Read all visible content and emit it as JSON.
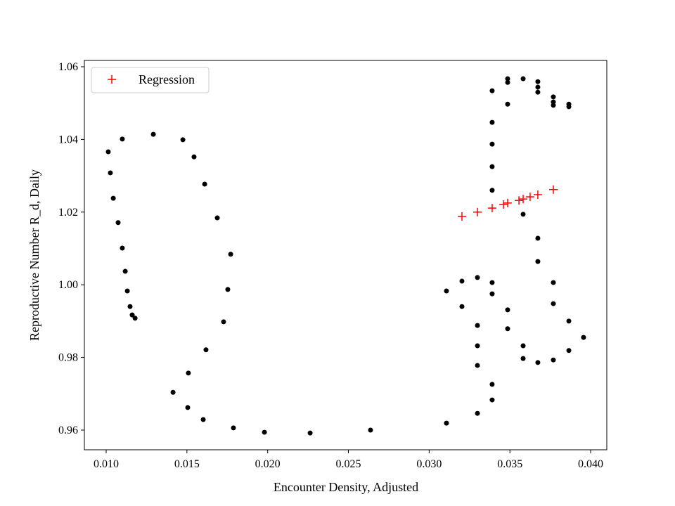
{
  "chart_data": {
    "type": "scatter",
    "x_label": "Encounter Density, Adjusted",
    "y_label": "Reproductive Number R_d, Daily",
    "xlim": [
      0.00865,
      0.041
    ],
    "ylim": [
      0.95458,
      1.06174
    ],
    "xticks": [
      {
        "value": 0.01,
        "label": "0.010"
      },
      0.015,
      {
        "value": 0.02,
        "label": "0.020"
      },
      0.025,
      {
        "value": 0.03,
        "label": "0.030"
      },
      0.035,
      {
        "value": 0.04,
        "label": "0.040"
      }
    ],
    "yticks": [
      0.96,
      0.98,
      {
        "value": 1.0,
        "label": "1.00"
      },
      1.02,
      1.04,
      1.06
    ],
    "legend": "upper left",
    "series": [
      {
        "color": "#000000",
        "marker": "o",
        "x": [
          0.01013,
          0.01026,
          0.01044,
          0.01074,
          0.011,
          0.01118,
          0.01131,
          0.01148,
          0.01161,
          0.01179,
          0.011,
          0.01292,
          0.01475,
          0.01544,
          0.0161,
          0.01688,
          0.01771,
          0.01753,
          0.01727,
          0.01618,
          0.01509,
          0.01414,
          0.01505,
          0.01601,
          0.01788,
          0.0198,
          0.02263,
          0.02637,
          0.03107,
          0.03299,
          0.0339,
          0.0339,
          0.03299,
          0.03299,
          0.03299,
          0.03486,
          0.03486,
          0.0339,
          0.0339,
          0.03299,
          0.03203,
          0.03107,
          0.03203,
          0.03582,
          0.03582,
          0.03673,
          0.03769,
          0.03865,
          0.03956,
          0.03865,
          0.03769,
          0.03769,
          0.03673,
          0.03673,
          0.03582,
          0.0339,
          0.0339,
          0.0339,
          0.0339,
          0.0339,
          0.03486,
          0.03486,
          0.03486,
          0.03582,
          0.03673,
          0.03673,
          0.03673,
          0.03769,
          0.03769,
          0.03769,
          0.03865,
          0.03865
        ],
        "values": [
          1.0366,
          1.0308,
          1.0238,
          1.0171,
          1.0101,
          1.0037,
          0.9983,
          0.994,
          0.9917,
          0.9908,
          1.0401,
          1.0414,
          1.0399,
          1.0352,
          1.0277,
          1.0184,
          1.0084,
          0.9987,
          0.9898,
          0.9821,
          0.9757,
          0.9704,
          0.9662,
          0.9629,
          0.9606,
          0.9594,
          0.9592,
          0.96,
          0.9619,
          0.9646,
          0.9683,
          0.9726,
          0.9778,
          0.9832,
          0.9888,
          0.9879,
          0.9931,
          0.9975,
          1.0006,
          1.002,
          1.001,
          0.9983,
          0.994,
          0.9797,
          0.9832,
          0.9786,
          0.9793,
          0.9819,
          0.9855,
          0.99,
          0.9948,
          1.0006,
          1.0064,
          1.0128,
          1.0194,
          1.026,
          1.0325,
          1.0387,
          1.0447,
          1.0534,
          1.0497,
          1.0557,
          1.0567,
          1.0567,
          1.0559,
          1.0544,
          1.053,
          1.0517,
          1.0503,
          1.0494,
          1.0497,
          1.049
        ]
      },
      {
        "name": "Regression",
        "color": "#ff0000",
        "marker": "+",
        "x": [
          0.03203,
          0.03299,
          0.0339,
          0.0346,
          0.03486,
          0.03556,
          0.03582,
          0.03625,
          0.03673,
          0.03769
        ],
        "values": [
          1.0188,
          1.02,
          1.0211,
          1.0221,
          1.0225,
          1.0232,
          1.0236,
          1.0242,
          1.0248,
          1.0262
        ]
      }
    ]
  }
}
